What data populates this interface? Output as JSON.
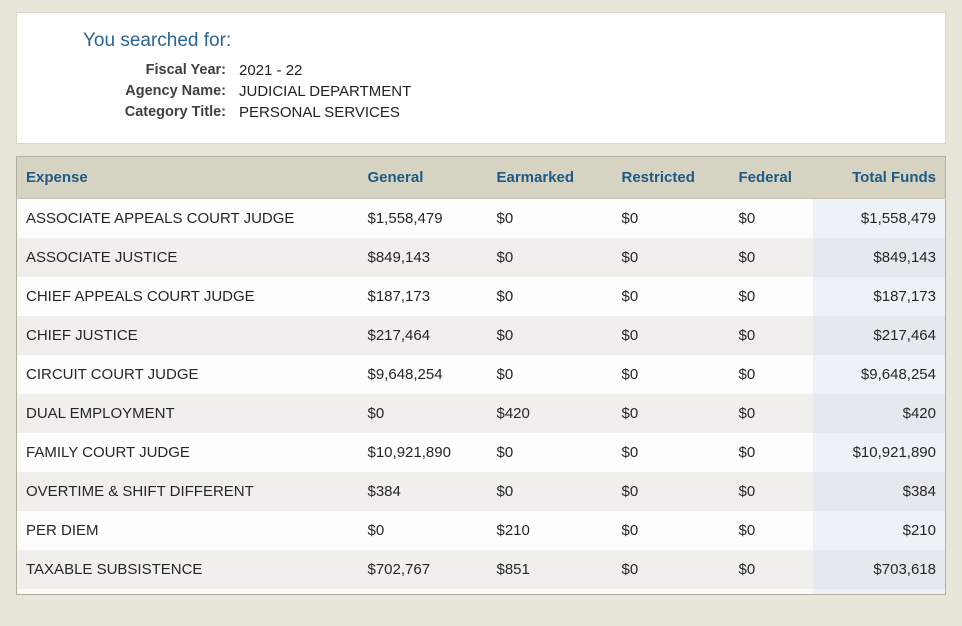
{
  "search_panel": {
    "title": "You searched for:",
    "fields": [
      {
        "label": "Fiscal Year:",
        "value": "2021 - 22"
      },
      {
        "label": "Agency Name:",
        "value": "JUDICIAL DEPARTMENT"
      },
      {
        "label": "Category Title:",
        "value": "PERSONAL SERVICES"
      }
    ]
  },
  "table": {
    "columns": [
      "Expense",
      "General",
      "Earmarked",
      "Restricted",
      "Federal",
      "Total Funds"
    ],
    "rows": [
      [
        "ASSOCIATE APPEALS COURT JUDGE",
        "$1,558,479",
        "$0",
        "$0",
        "$0",
        "$1,558,479"
      ],
      [
        "ASSOCIATE JUSTICE",
        "$849,143",
        "$0",
        "$0",
        "$0",
        "$849,143"
      ],
      [
        "CHIEF APPEALS COURT JUDGE",
        "$187,173",
        "$0",
        "$0",
        "$0",
        "$187,173"
      ],
      [
        "CHIEF JUSTICE",
        "$217,464",
        "$0",
        "$0",
        "$0",
        "$217,464"
      ],
      [
        "CIRCUIT COURT JUDGE",
        "$9,648,254",
        "$0",
        "$0",
        "$0",
        "$9,648,254"
      ],
      [
        "DUAL EMPLOYMENT",
        "$0",
        "$420",
        "$0",
        "$0",
        "$420"
      ],
      [
        "FAMILY COURT JUDGE",
        "$10,921,890",
        "$0",
        "$0",
        "$0",
        "$10,921,890"
      ],
      [
        "OVERTIME & SHIFT DIFFERENT",
        "$384",
        "$0",
        "$0",
        "$0",
        "$384"
      ],
      [
        "PER DIEM",
        "$0",
        "$210",
        "$0",
        "$0",
        "$210"
      ],
      [
        "TAXABLE SUBSISTENCE",
        "$702,767",
        "$851",
        "$0",
        "$0",
        "$703,618"
      ]
    ]
  },
  "colors": {
    "page_background": "#e8e5d9",
    "panel_title_blue": "#2a6496",
    "header_background": "#d7d3c3",
    "header_text_blue": "#1e5a85",
    "row_alt_gray": "#f0efec",
    "total_column_tint": "#edf2f8"
  }
}
